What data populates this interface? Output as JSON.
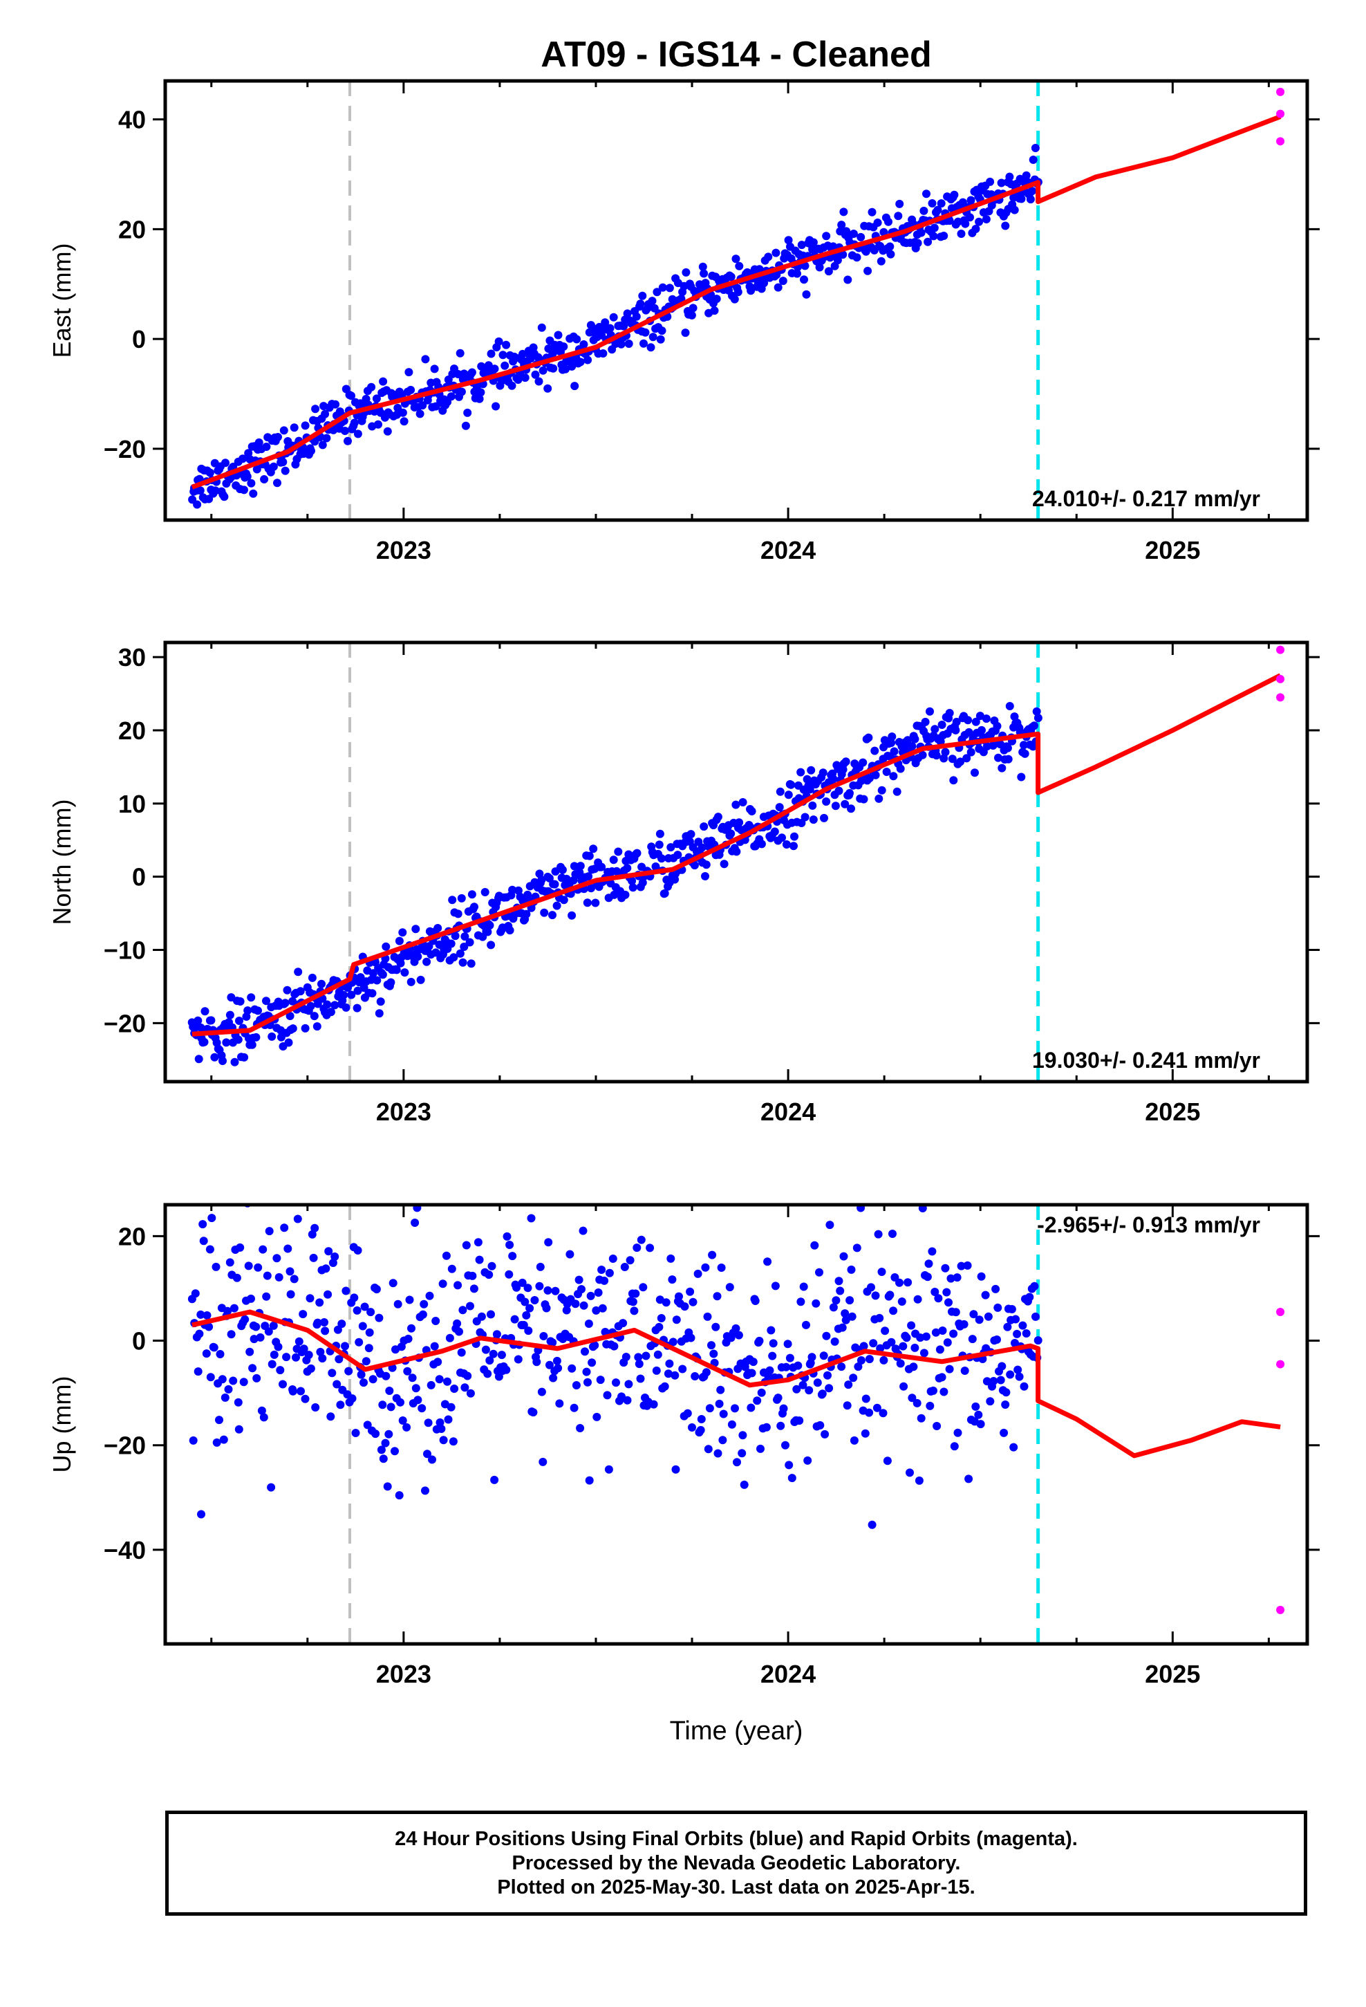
{
  "title": "AT09  - IGS14 - Cleaned",
  "xlabel": "Time (year)",
  "x_ticks": [
    "2023",
    "2024",
    "2025"
  ],
  "colors": {
    "final_points": "#0000ff",
    "rapid_points": "#ff00ff",
    "model": "#ff0000",
    "event_gray": "#c0c0c0",
    "event_cyan": "#00e5ee"
  },
  "footer": {
    "line1": "24 Hour Positions Using Final Orbits (blue) and Rapid Orbits (magenta).",
    "line2": "Processed by the Nevada Geodetic Laboratory.",
    "line3": "Plotted on 2025-May-30. Last data on 2025-Apr-15."
  },
  "chart_data": [
    {
      "type": "scatter",
      "ylabel": "East (mm)",
      "xlim": [
        2022.38,
        2025.35
      ],
      "ylim": [
        -33,
        47
      ],
      "yticks": [
        -20,
        0,
        20,
        40
      ],
      "rate_label": "24.010+/- 0.217 mm/yr",
      "rate_position": "bottom-right",
      "event_lines": [
        2022.86,
        2024.65
      ],
      "final_trend": [
        [
          2022.45,
          -27
        ],
        [
          2022.7,
          -20.5
        ],
        [
          2022.86,
          -13.5
        ],
        [
          2023.2,
          -7.5
        ],
        [
          2023.5,
          -1
        ],
        [
          2023.8,
          9
        ],
        [
          2024.1,
          15.5
        ],
        [
          2024.3,
          19.5
        ],
        [
          2024.65,
          28
        ]
      ],
      "final_scatter": 2.2,
      "rapid_points": [
        [
          2025.28,
          45
        ],
        [
          2025.28,
          41
        ],
        [
          2025.28,
          36
        ]
      ],
      "model_line": [
        [
          2022.45,
          -27
        ],
        [
          2022.7,
          -20.5
        ],
        [
          2022.86,
          -13.5
        ],
        [
          2023.2,
          -7.5
        ],
        [
          2023.5,
          -1.5
        ],
        [
          2023.8,
          9
        ],
        [
          2024.1,
          15.5
        ],
        [
          2024.3,
          19.5
        ],
        [
          2024.65,
          28.5
        ],
        [
          2024.65,
          25
        ],
        [
          2024.8,
          29.5
        ],
        [
          2025.0,
          33
        ],
        [
          2025.28,
          40.5
        ]
      ]
    },
    {
      "type": "scatter",
      "ylabel": "North (mm)",
      "xlim": [
        2022.38,
        2025.35
      ],
      "ylim": [
        -28,
        32
      ],
      "yticks": [
        -20,
        -10,
        0,
        10,
        20,
        30
      ],
      "rate_label": "19.030+/- 0.241 mm/yr",
      "rate_position": "bottom-right",
      "event_lines": [
        2022.86,
        2024.65
      ],
      "final_trend": [
        [
          2022.45,
          -21.5
        ],
        [
          2022.6,
          -21
        ],
        [
          2022.86,
          -15
        ],
        [
          2023.2,
          -6
        ],
        [
          2023.5,
          -0.5
        ],
        [
          2023.7,
          2
        ],
        [
          2023.9,
          6
        ],
        [
          2024.1,
          12
        ],
        [
          2024.35,
          18
        ],
        [
          2024.65,
          19.5
        ]
      ],
      "final_scatter": 2.0,
      "rapid_points": [
        [
          2025.28,
          31
        ],
        [
          2025.28,
          27
        ],
        [
          2025.28,
          24.5
        ]
      ],
      "model_line": [
        [
          2022.45,
          -21.5
        ],
        [
          2022.6,
          -21
        ],
        [
          2022.86,
          -14
        ],
        [
          2022.87,
          -12
        ],
        [
          2023.2,
          -6
        ],
        [
          2023.5,
          -0.5
        ],
        [
          2023.7,
          1
        ],
        [
          2023.9,
          6
        ],
        [
          2024.1,
          12
        ],
        [
          2024.35,
          17.5
        ],
        [
          2024.65,
          19.5
        ],
        [
          2024.65,
          11.5
        ],
        [
          2024.8,
          15
        ],
        [
          2025.0,
          20
        ],
        [
          2025.28,
          27.5
        ]
      ]
    },
    {
      "type": "scatter",
      "ylabel": "Up (mm)",
      "xlim": [
        2022.38,
        2025.35
      ],
      "ylim": [
        -58,
        26
      ],
      "yticks": [
        -40,
        -20,
        0,
        20
      ],
      "rate_label": "-2.965+/- 0.913 mm/yr",
      "rate_position": "top-right",
      "event_lines": [
        2022.86,
        2024.65
      ],
      "final_trend": [
        [
          2022.45,
          3
        ],
        [
          2022.6,
          5.5
        ],
        [
          2022.75,
          2
        ],
        [
          2022.9,
          -5.5
        ],
        [
          2023.1,
          -2
        ],
        [
          2023.2,
          1
        ],
        [
          2023.4,
          -1.5
        ],
        [
          2023.6,
          2
        ],
        [
          2023.8,
          -5
        ],
        [
          2023.9,
          -8.5
        ],
        [
          2024.0,
          -7.5
        ],
        [
          2024.2,
          -2
        ],
        [
          2024.4,
          -4
        ],
        [
          2024.65,
          -1
        ]
      ],
      "final_scatter": 11,
      "rapid_points": [
        [
          2025.28,
          5.5
        ],
        [
          2025.28,
          -4.5
        ],
        [
          2025.28,
          -51.5
        ]
      ],
      "model_line": [
        [
          2022.45,
          3
        ],
        [
          2022.6,
          5.5
        ],
        [
          2022.75,
          2
        ],
        [
          2022.9,
          -5.5
        ],
        [
          2023.1,
          -2
        ],
        [
          2023.2,
          0.5
        ],
        [
          2023.4,
          -1.5
        ],
        [
          2023.6,
          2
        ],
        [
          2023.8,
          -5
        ],
        [
          2023.9,
          -8.5
        ],
        [
          2024.0,
          -7.5
        ],
        [
          2024.2,
          -2
        ],
        [
          2024.4,
          -4
        ],
        [
          2024.63,
          -1
        ],
        [
          2024.65,
          -1.5
        ],
        [
          2024.65,
          -11.5
        ],
        [
          2024.75,
          -15
        ],
        [
          2024.9,
          -22
        ],
        [
          2025.05,
          -19
        ],
        [
          2025.18,
          -15.5
        ],
        [
          2025.28,
          -16.5
        ]
      ]
    }
  ]
}
